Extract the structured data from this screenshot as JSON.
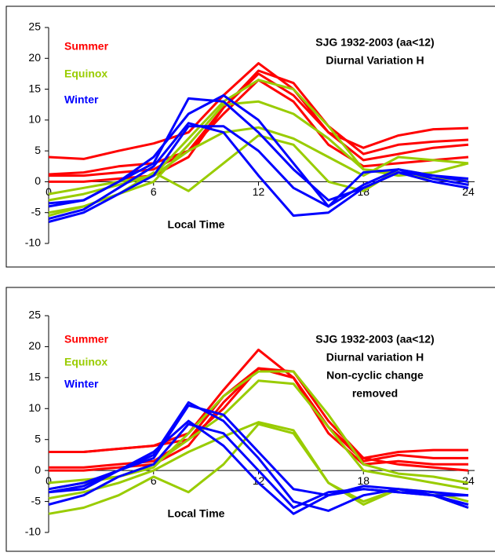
{
  "chart_data": [
    {
      "type": "line",
      "title": [
        "SJG 1932-2003 (aa<12)",
        "Diurnal Variation H"
      ],
      "x_label": "Local Time",
      "x": [
        0,
        2,
        4,
        6,
        8,
        10,
        12,
        14,
        16,
        18,
        20,
        22,
        24
      ],
      "xlim": [
        0,
        24
      ],
      "xticks": [
        0,
        6,
        12,
        18,
        24
      ],
      "ylim": [
        -10,
        25
      ],
      "yticks": [
        -10,
        -5,
        0,
        5,
        10,
        15,
        20,
        25
      ],
      "grid": false,
      "legend": "upper left",
      "series": [
        {
          "name": "Summer",
          "color": "#ff0000",
          "values": [
            [
              4,
              3.7,
              5,
              6.2,
              8,
              14,
              19.2,
              15,
              8,
              5.5,
              7.5,
              8.5,
              8.7
            ],
            [
              1.2,
              1.5,
              2.5,
              3,
              5,
              12,
              18,
              16,
              9,
              4.5,
              6,
              6.5,
              6.8
            ],
            [
              0,
              0,
              0.5,
              1,
              4,
              12,
              17.5,
              14,
              8,
              3.5,
              4.5,
              5.5,
              6
            ],
            [
              1,
              1,
              1.5,
              2,
              5,
              11,
              16.5,
              13,
              6,
              2.5,
              3,
              3.5,
              4
            ]
          ]
        },
        {
          "name": "Equinox",
          "color": "#99cc00",
          "values": [
            [
              -2,
              -1,
              0,
              1,
              7,
              13,
              16.5,
              15,
              9,
              2,
              1,
              1.5,
              3
            ],
            [
              -3,
              -2,
              -0.5,
              1,
              5,
              8,
              8.8,
              7,
              4,
              1,
              4,
              3.5,
              3
            ],
            [
              -5,
              -4,
              -2,
              1.5,
              -1.5,
              3,
              7.5,
              6,
              0,
              -1.5,
              2,
              1,
              0
            ],
            [
              -5.5,
              -4,
              -2,
              0,
              6,
              12.5,
              13,
              11,
              7,
              2,
              1.5,
              0.5,
              0.5
            ]
          ]
        },
        {
          "name": "Winter",
          "color": "#0000ff",
          "values": [
            [
              -3.5,
              -3,
              0,
              3,
              13.5,
              13,
              8,
              2,
              -3,
              -1,
              1.5,
              1,
              0.5
            ],
            [
              -4,
              -3,
              0,
              4,
              11,
              14,
              10,
              3,
              -4,
              -0.5,
              2,
              1,
              0
            ],
            [
              -6.5,
              -5,
              -2,
              1,
              9,
              9,
              5,
              -1,
              -4,
              1.5,
              2,
              0.5,
              -0.5
            ],
            [
              -6,
              -4.5,
              -1,
              2.5,
              9.5,
              8,
              1,
              -5.5,
              -5,
              -1,
              1.5,
              0,
              -1
            ]
          ]
        }
      ]
    },
    {
      "type": "line",
      "title": [
        "SJG 1932-2003 (aa<12)",
        "Diurnal variation H",
        "Non-cyclic change",
        "removed"
      ],
      "x_label": "Local Time",
      "x": [
        0,
        2,
        4,
        6,
        8,
        10,
        12,
        14,
        16,
        18,
        20,
        22,
        24
      ],
      "xlim": [
        0,
        24
      ],
      "xticks": [
        0,
        6,
        12,
        18,
        24
      ],
      "ylim": [
        -10,
        25
      ],
      "yticks": [
        -10,
        -5,
        0,
        5,
        10,
        15,
        20,
        25
      ],
      "grid": false,
      "legend": "upper left",
      "series": [
        {
          "name": "Summer",
          "color": "#ff0000",
          "values": [
            [
              3,
              3,
              3.5,
              4,
              6,
              13,
              19.5,
              15,
              7,
              2,
              3,
              3.3,
              3.3
            ],
            [
              0.5,
              0.5,
              1,
              1.5,
              5,
              12,
              16.5,
              15,
              7,
              1.5,
              2.5,
              2,
              2
            ],
            [
              0,
              0,
              0.5,
              1,
              4,
              11,
              16.5,
              15,
              6,
              1,
              1.5,
              1,
              1
            ],
            [
              3,
              3,
              3.5,
              4,
              5,
              10,
              16.5,
              16,
              8,
              2,
              1,
              0.5,
              0
            ]
          ]
        },
        {
          "name": "Equinox",
          "color": "#99cc00",
          "values": [
            [
              -2,
              -1.5,
              -1,
              0.5,
              6,
              12,
              16,
              16,
              9,
              1,
              -0.5,
              -1,
              -2
            ],
            [
              -3,
              -2,
              -1,
              1,
              5,
              9,
              14.5,
              14,
              7,
              0,
              -1,
              -2,
              -3
            ],
            [
              -7,
              -6,
              -4,
              -1,
              -3.5,
              1,
              7.5,
              6,
              -2,
              -5,
              -3,
              -4,
              -6
            ],
            [
              -4.5,
              -3.5,
              -2,
              0,
              3,
              5.5,
              7.8,
              6.5,
              -2,
              -5.5,
              -3,
              -3.5,
              -5
            ]
          ]
        },
        {
          "name": "Winter",
          "color": "#0000ff",
          "values": [
            [
              -3,
              -2,
              0,
              2,
              10.5,
              9,
              3,
              -3,
              -4,
              -2.5,
              -3,
              -3.5,
              -4
            ],
            [
              -3.5,
              -2.5,
              0,
              2.5,
              11,
              8,
              2,
              -5,
              -6.5,
              -4,
              -3,
              -4,
              -5.5
            ],
            [
              -5.5,
              -4,
              -1,
              1,
              7.5,
              6,
              0,
              -6,
              -3.5,
              -3,
              -3.5,
              -4,
              -6
            ],
            [
              -3.5,
              -3,
              0,
              3,
              8,
              4,
              -2,
              -7,
              -4,
              -3,
              -3.5,
              -4,
              -4
            ]
          ]
        }
      ]
    }
  ]
}
